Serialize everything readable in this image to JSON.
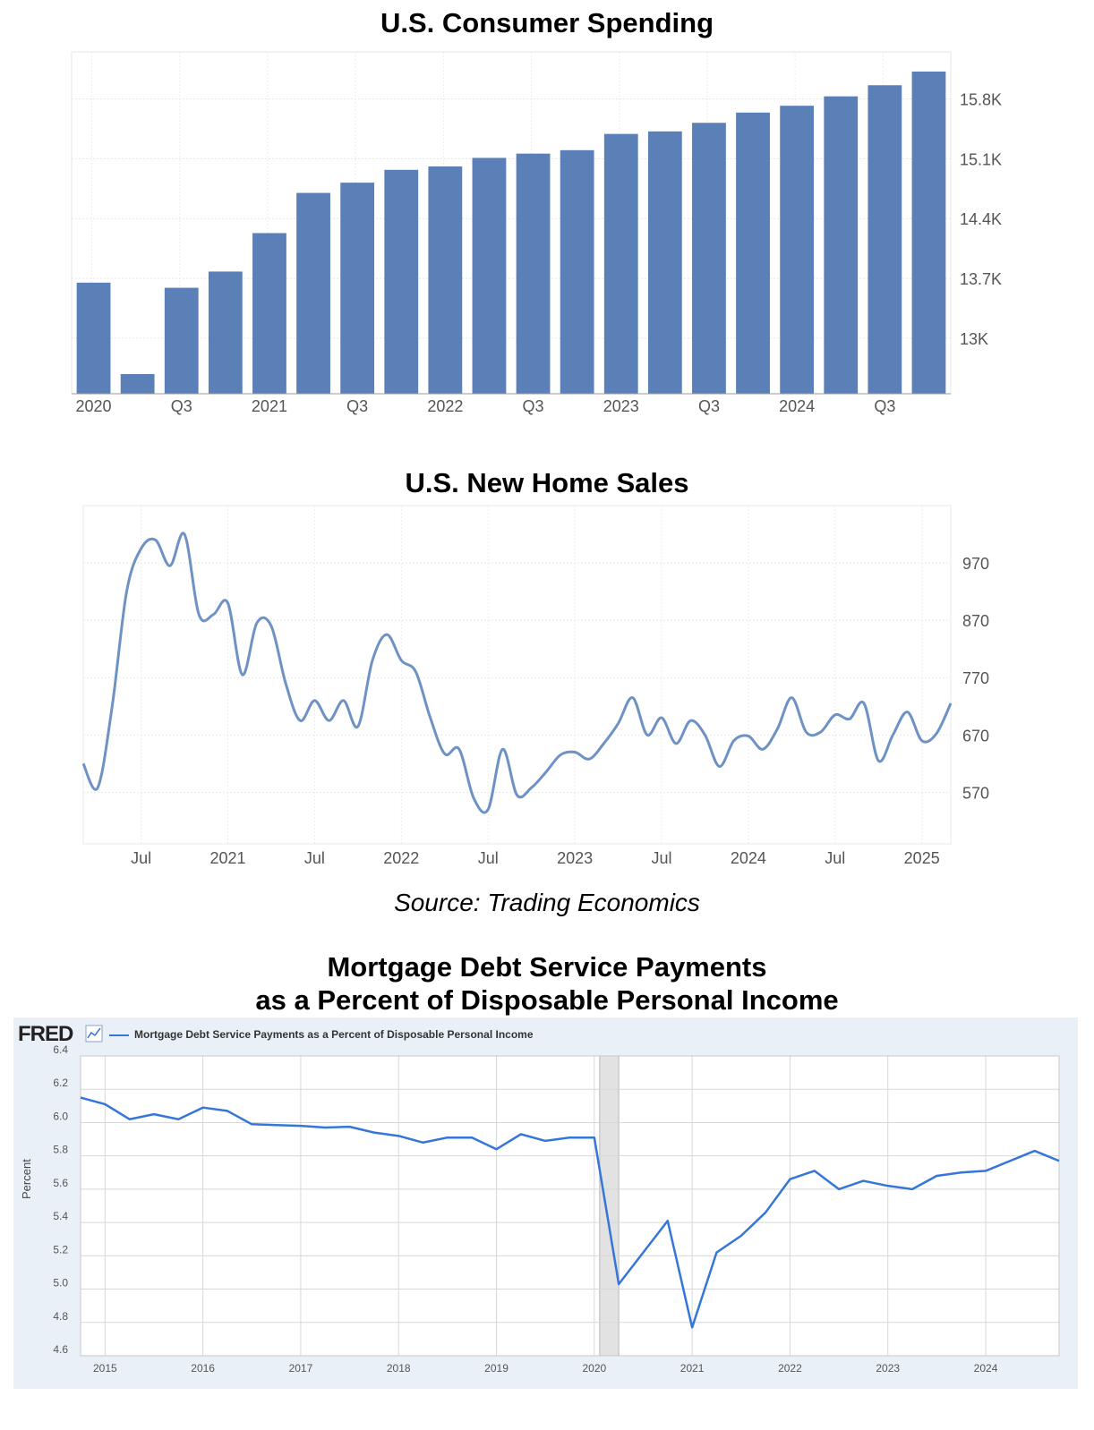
{
  "chart_data": [
    {
      "type": "bar",
      "title": "U.S. Consumer Spending",
      "categories": [
        "2020 Q1",
        "2020 Q2",
        "2020 Q3",
        "2020 Q4",
        "2021 Q1",
        "2021 Q2",
        "2021 Q3",
        "2021 Q4",
        "2022 Q1",
        "2022 Q2",
        "2022 Q3",
        "2022 Q4",
        "2023 Q1",
        "2023 Q2",
        "2023 Q3",
        "2023 Q4",
        "2024 Q1",
        "2024 Q2",
        "2024 Q3",
        "2024 Q4"
      ],
      "values": [
        13650,
        12580,
        13590,
        13780,
        14230,
        14700,
        14820,
        14970,
        15010,
        15110,
        15160,
        15200,
        15390,
        15420,
        15520,
        15640,
        15720,
        15830,
        15960,
        16120
      ],
      "x_tick_labels": [
        "2020",
        "Q3",
        "2021",
        "Q3",
        "2022",
        "Q3",
        "2023",
        "Q3",
        "2024",
        "Q3"
      ],
      "y_tick_labels": [
        "13K",
        "13.7K",
        "14.4K",
        "15.1K",
        "15.8K"
      ],
      "y_ticks": [
        13000,
        13700,
        14400,
        15100,
        15800
      ],
      "ylim": [
        12350,
        16350
      ],
      "color": "#5b80b8",
      "grid": true
    },
    {
      "type": "line",
      "title": "U.S. New Home Sales",
      "x": [
        "2020-03",
        "2020-04",
        "2020-05",
        "2020-06",
        "2020-07",
        "2020-08",
        "2020-09",
        "2020-10",
        "2020-11",
        "2020-12",
        "2021-01",
        "2021-02",
        "2021-03",
        "2021-04",
        "2021-05",
        "2021-06",
        "2021-07",
        "2021-08",
        "2021-09",
        "2021-10",
        "2021-11",
        "2021-12",
        "2022-01",
        "2022-02",
        "2022-03",
        "2022-04",
        "2022-05",
        "2022-06",
        "2022-07",
        "2022-08",
        "2022-09",
        "2022-10",
        "2022-11",
        "2022-12",
        "2023-01",
        "2023-02",
        "2023-03",
        "2023-04",
        "2023-05",
        "2023-06",
        "2023-07",
        "2023-08",
        "2023-09",
        "2023-10",
        "2023-11",
        "2023-12",
        "2024-01",
        "2024-02",
        "2024-03",
        "2024-04",
        "2024-05",
        "2024-06",
        "2024-07",
        "2024-08",
        "2024-09",
        "2024-10",
        "2024-11",
        "2024-12",
        "2025-01",
        "2025-02",
        "2025-03"
      ],
      "values": [
        620,
        578,
        720,
        920,
        995,
        1010,
        965,
        1020,
        880,
        880,
        900,
        775,
        865,
        860,
        760,
        695,
        730,
        695,
        730,
        685,
        800,
        845,
        800,
        780,
        700,
        637,
        645,
        560,
        540,
        645,
        565,
        578,
        605,
        635,
        640,
        628,
        655,
        690,
        735,
        670,
        700,
        655,
        695,
        670,
        615,
        660,
        668,
        645,
        680,
        735,
        675,
        675,
        705,
        698,
        725,
        625,
        670,
        710,
        660,
        672,
        725
      ],
      "x_tick_labels": [
        "Jul",
        "2021",
        "Jul",
        "2022",
        "Jul",
        "2023",
        "Jul",
        "2024",
        "Jul",
        "2025"
      ],
      "y_tick_labels": [
        "570",
        "670",
        "770",
        "870",
        "970"
      ],
      "y_ticks": [
        570,
        670,
        770,
        870,
        970
      ],
      "ylim": [
        480,
        1070
      ],
      "color": "#6f92c4",
      "grid": true
    },
    {
      "type": "line",
      "title": "Mortgage Debt Service Payments as a Percent of Disposable Personal Income",
      "series_name": "Mortgage Debt Service Payments as a Percent of Disposable Personal Income",
      "x": [
        "2014 Q4",
        "2015 Q1",
        "2015 Q2",
        "2015 Q3",
        "2015 Q4",
        "2016 Q1",
        "2016 Q2",
        "2016 Q3",
        "2016 Q4",
        "2017 Q1",
        "2017 Q2",
        "2017 Q3",
        "2017 Q4",
        "2018 Q1",
        "2018 Q2",
        "2018 Q3",
        "2018 Q4",
        "2019 Q1",
        "2019 Q2",
        "2019 Q3",
        "2019 Q4",
        "2020 Q1",
        "2020 Q2",
        "2020 Q3",
        "2020 Q4",
        "2021 Q1",
        "2021 Q2",
        "2021 Q3",
        "2021 Q4",
        "2022 Q1",
        "2022 Q2",
        "2022 Q3",
        "2022 Q4",
        "2023 Q1",
        "2023 Q2",
        "2023 Q3",
        "2023 Q4",
        "2024 Q1",
        "2024 Q2",
        "2024 Q3",
        "2024 Q4"
      ],
      "values": [
        6.15,
        6.11,
        6.02,
        6.05,
        6.02,
        6.09,
        6.07,
        5.99,
        5.985,
        5.98,
        5.97,
        5.975,
        5.94,
        5.92,
        5.88,
        5.91,
        5.91,
        5.84,
        5.93,
        5.89,
        5.91,
        5.91,
        5.03,
        5.22,
        5.41,
        4.77,
        5.22,
        5.32,
        5.46,
        5.66,
        5.71,
        5.6,
        5.65,
        5.62,
        5.6,
        5.68,
        5.7,
        5.71,
        5.77,
        5.83,
        5.77
      ],
      "x_tick_labels": [
        "2015",
        "2016",
        "2017",
        "2018",
        "2019",
        "2020",
        "2021",
        "2022",
        "2023",
        "2024"
      ],
      "y_tick_labels": [
        "4.6",
        "4.8",
        "5.0",
        "5.2",
        "5.4",
        "5.6",
        "5.8",
        "6.0",
        "6.2",
        "6.4"
      ],
      "y_ticks": [
        4.6,
        4.8,
        5.0,
        5.2,
        5.4,
        5.6,
        5.8,
        6.0,
        6.2,
        6.4
      ],
      "ylim": [
        4.6,
        6.4
      ],
      "ylabel": "Percent",
      "recession_shading": [
        "2020 Q1",
        "2020 Q2"
      ],
      "color": "#3576d8",
      "grid": true
    }
  ],
  "source": "Source: Trading Economics",
  "fred": {
    "logo": "FRED",
    "legend": "Mortgage Debt Service Payments as a Percent of Disposable Personal Income"
  },
  "titles": {
    "chart1": "U.S. Consumer Spending",
    "chart2": "U.S. New Home Sales",
    "chart3_line1": "Mortgage Debt Service Payments",
    "chart3_line2": "as a Percent of Disposable Personal Income"
  }
}
